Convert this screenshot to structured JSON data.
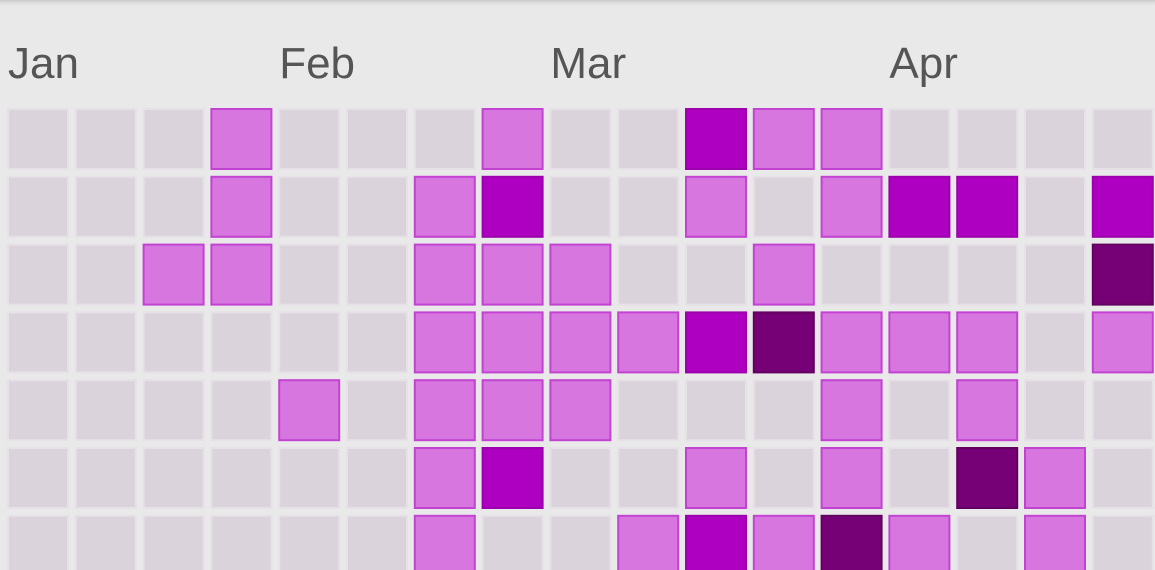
{
  "chart_data": {
    "type": "heatmap",
    "title": "",
    "xlabel": "",
    "ylabel": "",
    "grid": true,
    "legend": "none",
    "month_labels": [
      {
        "label": "Jan",
        "week_index": 0
      },
      {
        "label": "Feb",
        "week_index": 4
      },
      {
        "label": "Mar",
        "week_index": 8
      },
      {
        "label": "Apr",
        "week_index": 13
      }
    ],
    "levels": [
      0,
      1,
      2,
      3
    ],
    "level_colors": [
      "#dbd3dc",
      "#d876e0",
      "#ad00c0",
      "#760075"
    ],
    "level_stroke_colors": [
      "#e6e1e6",
      "#c243d2",
      "#9c00ad",
      "#62005f"
    ],
    "weeks": 17,
    "days_visible": 7,
    "values": [
      [
        0,
        0,
        0,
        1,
        0,
        0,
        0,
        1,
        0,
        0,
        2,
        1,
        1,
        0,
        0,
        0,
        0
      ],
      [
        0,
        0,
        0,
        1,
        0,
        0,
        1,
        2,
        0,
        0,
        1,
        0,
        1,
        2,
        2,
        0,
        2
      ],
      [
        0,
        0,
        1,
        1,
        0,
        0,
        1,
        1,
        1,
        0,
        0,
        1,
        0,
        0,
        0,
        0,
        3
      ],
      [
        0,
        0,
        0,
        0,
        0,
        0,
        1,
        1,
        1,
        1,
        2,
        3,
        1,
        1,
        1,
        0,
        1
      ],
      [
        0,
        0,
        0,
        0,
        1,
        0,
        1,
        1,
        1,
        0,
        0,
        0,
        1,
        0,
        1,
        0,
        0
      ],
      [
        0,
        0,
        0,
        0,
        0,
        0,
        1,
        2,
        0,
        0,
        1,
        0,
        1,
        0,
        3,
        1,
        0
      ],
      [
        0,
        0,
        0,
        0,
        0,
        0,
        1,
        0,
        0,
        1,
        2,
        1,
        3,
        1,
        0,
        1,
        0
      ]
    ]
  }
}
